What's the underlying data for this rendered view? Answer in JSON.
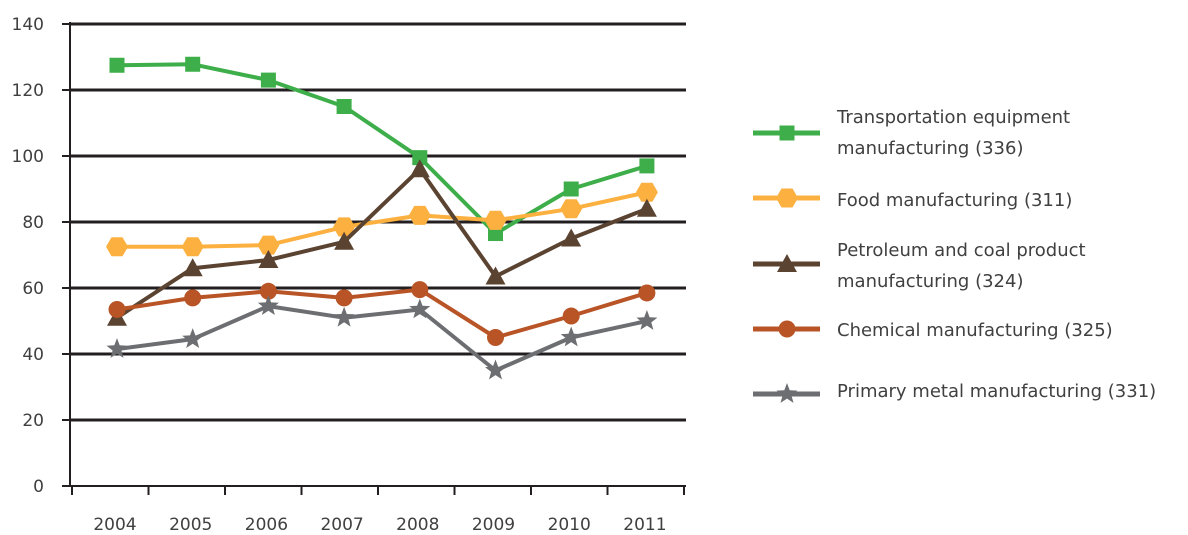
{
  "chart_data": {
    "type": "line",
    "categories": [
      "2004",
      "2005",
      "2006",
      "2007",
      "2008",
      "2009",
      "2010",
      "2011"
    ],
    "ylim": [
      0,
      140
    ],
    "yticks": [
      "0",
      "20",
      "40",
      "60",
      "80",
      "100",
      "120",
      "140"
    ],
    "grid": true,
    "legend_position": "right",
    "series": [
      {
        "name_lines": [
          "Transportation equipment",
          "manufacturing (336)"
        ],
        "color": "#3DAE49",
        "marker": "square",
        "values": [
          127.5,
          127.8,
          123,
          115,
          99.5,
          76.5,
          90,
          97
        ]
      },
      {
        "name_lines": [
          "Food manufacturing (311)"
        ],
        "color": "#FBB040",
        "marker": "hexagon",
        "values": [
          72.5,
          72.5,
          73,
          78.5,
          82,
          80.5,
          84,
          89
        ]
      },
      {
        "name_lines": [
          "Petroleum and coal product",
          "manufacturing (324)"
        ],
        "color": "#5B4332",
        "marker": "triangle",
        "values": [
          51,
          66,
          68.5,
          74,
          96,
          63.5,
          75,
          84
        ]
      },
      {
        "name_lines": [
          "Chemical manufacturing (325)"
        ],
        "color": "#B85426",
        "marker": "circle",
        "values": [
          53.5,
          57,
          59,
          57,
          59.5,
          45,
          51.5,
          58.5
        ]
      },
      {
        "name_lines": [
          "Primary metal manufacturing (331)"
        ],
        "color": "#6D6E71",
        "marker": "star",
        "values": [
          41.5,
          44.5,
          54.5,
          51,
          53.5,
          35,
          45,
          50
        ]
      }
    ]
  }
}
